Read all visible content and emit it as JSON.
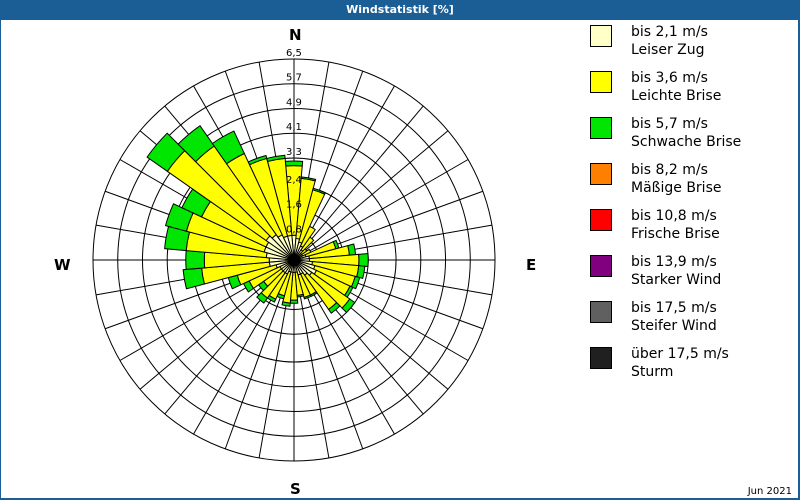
{
  "header": {
    "title": "Windstatistik [%]"
  },
  "compass": {
    "n": "N",
    "e": "E",
    "s": "S",
    "w": "W"
  },
  "footer": {
    "date": "Jun 2021"
  },
  "legend": [
    {
      "range": "bis 2,1 m/s",
      "name": "Leiser Zug",
      "color": "#ffffc8"
    },
    {
      "range": "bis 3,6 m/s",
      "name": "Leichte Brise",
      "color": "#ffff00"
    },
    {
      "range": "bis 5,7 m/s",
      "name": "Schwache Brise",
      "color": "#00e600"
    },
    {
      "range": "bis 8,2 m/s",
      "name": "Mäßige Brise",
      "color": "#ff8000"
    },
    {
      "range": "bis 10,8 m/s",
      "name": "Frische Brise",
      "color": "#ff0000"
    },
    {
      "range": "bis 13,9 m/s",
      "name": "Starker Wind",
      "color": "#800080"
    },
    {
      "range": "bis 17,5 m/s",
      "name": "Steifer Wind",
      "color": "#606060"
    },
    {
      "range": "über 17,5 m/s",
      "name": "Sturm",
      "color": "#202020"
    }
  ],
  "chart_data": {
    "type": "wind-rose",
    "title": "Windstatistik [%]",
    "rings": [
      "0,8",
      "1,6",
      "2,4",
      "3,3",
      "4,1",
      "4,9",
      "5,7",
      "6,5"
    ],
    "ring_values": [
      0.8,
      1.6,
      2.4,
      3.3,
      4.1,
      4.9,
      5.7,
      6.5
    ],
    "rmax": 6.5,
    "directions_deg": [
      0,
      10,
      20,
      30,
      40,
      50,
      60,
      70,
      80,
      90,
      100,
      110,
      120,
      130,
      140,
      150,
      160,
      170,
      180,
      190,
      200,
      210,
      220,
      230,
      240,
      250,
      260,
      270,
      280,
      290,
      300,
      310,
      320,
      330,
      340,
      350
    ],
    "series": [
      {
        "name": "bis 2,1 m/s",
        "values": [
          0.8,
          0.7,
          0.6,
          0.5,
          0.4,
          0.3,
          0.3,
          0.4,
          0.5,
          0.5,
          0.6,
          0.7,
          0.8,
          0.7,
          0.6,
          0.5,
          0.5,
          0.4,
          0.4,
          0.4,
          0.4,
          0.5,
          0.5,
          0.5,
          0.5,
          0.6,
          0.8,
          0.8,
          0.9,
          1.0,
          1.0,
          1.1,
          1.0,
          0.9,
          0.8,
          0.8
        ]
      },
      {
        "name": "bis 3,6 m/s",
        "values": [
          2.25,
          1.95,
          1.75,
          0.7,
          0.5,
          0.2,
          0.3,
          1.0,
          1.3,
          1.6,
          1.5,
          1.35,
          1.2,
          1.5,
          1.35,
          0.75,
          0.75,
          0.75,
          0.9,
          1.0,
          0.8,
          0.9,
          1.0,
          0.7,
          1.1,
          1.3,
          2.2,
          2.1,
          2.6,
          2.6,
          2.3,
          3.9,
          3.5,
          2.9,
          2.6,
          2.5
        ]
      },
      {
        "name": "bis 5,7 m/s",
        "values": [
          0.15,
          0.05,
          0.05,
          0,
          0,
          0,
          0,
          0.1,
          0.2,
          0.3,
          0.2,
          0.15,
          0.1,
          0.2,
          0.15,
          0.05,
          0.05,
          0.05,
          0.1,
          0.1,
          0.1,
          0.1,
          0.2,
          0.2,
          0.2,
          0.3,
          0.6,
          0.6,
          0.7,
          0.7,
          0.7,
          0.8,
          0.8,
          0.8,
          0.1,
          0.1
        ]
      },
      {
        "name": "bis 8,2 m/s",
        "values": [
          0,
          0,
          0,
          0,
          0,
          0,
          0,
          0,
          0,
          0,
          0,
          0,
          0,
          0,
          0,
          0,
          0,
          0,
          0,
          0,
          0,
          0,
          0,
          0,
          0,
          0,
          0,
          0,
          0,
          0,
          0,
          0,
          0,
          0,
          0,
          0
        ]
      },
      {
        "name": "bis 10,8 m/s",
        "values": [
          0,
          0,
          0,
          0,
          0,
          0,
          0,
          0,
          0,
          0,
          0,
          0,
          0,
          0,
          0,
          0,
          0,
          0,
          0,
          0,
          0,
          0,
          0,
          0,
          0,
          0,
          0,
          0,
          0,
          0,
          0,
          0,
          0,
          0,
          0,
          0
        ]
      },
      {
        "name": "bis 13,9 m/s",
        "values": [
          0,
          0,
          0,
          0,
          0,
          0,
          0,
          0,
          0,
          0,
          0,
          0,
          0,
          0,
          0,
          0,
          0,
          0,
          0,
          0,
          0,
          0,
          0,
          0,
          0,
          0,
          0,
          0,
          0,
          0,
          0,
          0,
          0,
          0,
          0,
          0
        ]
      },
      {
        "name": "bis 17,5 m/s",
        "values": [
          0,
          0,
          0,
          0,
          0,
          0,
          0,
          0,
          0,
          0,
          0,
          0,
          0,
          0,
          0,
          0,
          0,
          0,
          0,
          0,
          0,
          0,
          0,
          0,
          0,
          0,
          0,
          0,
          0,
          0,
          0,
          0,
          0,
          0,
          0,
          0
        ]
      },
      {
        "name": "über 17,5 m/s",
        "values": [
          0,
          0,
          0,
          0,
          0,
          0,
          0,
          0,
          0,
          0,
          0,
          0,
          0,
          0,
          0,
          0,
          0,
          0,
          0,
          0,
          0,
          0,
          0,
          0,
          0,
          0,
          0,
          0,
          0,
          0,
          0,
          0,
          0,
          0,
          0,
          0
        ]
      }
    ],
    "date": "Jun 2021"
  }
}
